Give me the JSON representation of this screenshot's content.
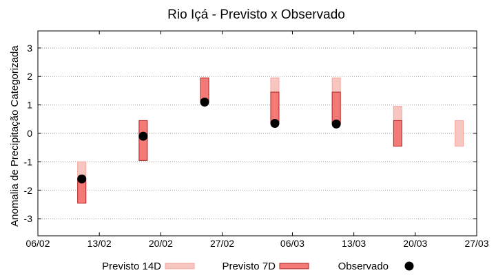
{
  "chart_data": {
    "type": "range-and-scatter",
    "title": "Rio Içá - Previsto x Observado",
    "xlabel": "",
    "ylabel": "Anomalia de Precipitação Categorizada",
    "x_ticks": [
      "06/02",
      "13/02",
      "20/02",
      "27/02",
      "06/03",
      "13/03",
      "20/03",
      "27/03"
    ],
    "ylim": [
      -3.6,
      3.6
    ],
    "y_ticks": [
      -3,
      -2,
      -1,
      0,
      1,
      2,
      3
    ],
    "y_tick_labels": [
      "-3",
      "-2",
      "-1",
      "0",
      "1",
      "2",
      "3"
    ],
    "grid": true,
    "legend_position": "bottom",
    "series": [
      {
        "name": "Previsto 14D",
        "kind": "range",
        "color": "#f7c6c0",
        "points": [
          {
            "x": "11/02",
            "low": -2.45,
            "high": -1.0
          },
          {
            "x": "18/02",
            "low": -0.95,
            "high": 0.45
          },
          {
            "x": "25/02",
            "low": 1.1,
            "high": 1.95
          },
          {
            "x": "04/03",
            "low": 0.35,
            "high": 1.95
          },
          {
            "x": "11/03",
            "low": 0.35,
            "high": 1.95
          },
          {
            "x": "18/03",
            "low": -0.45,
            "high": 0.95
          },
          {
            "x": "25/03",
            "low": -0.45,
            "high": 0.45
          }
        ]
      },
      {
        "name": "Previsto 7D",
        "kind": "range",
        "color": "#f47a78",
        "points": [
          {
            "x": "11/02",
            "low": -2.45,
            "high": -1.6
          },
          {
            "x": "18/02",
            "low": -0.95,
            "high": 0.45
          },
          {
            "x": "25/02",
            "low": 1.1,
            "high": 1.95
          },
          {
            "x": "04/03",
            "low": 0.35,
            "high": 1.45
          },
          {
            "x": "11/03",
            "low": 0.35,
            "high": 1.45
          },
          {
            "x": "18/03",
            "low": -0.45,
            "high": 0.45
          }
        ]
      },
      {
        "name": "Observado",
        "kind": "scatter",
        "color": "#000000",
        "points": [
          {
            "x": "11/02",
            "y": -1.6
          },
          {
            "x": "18/02",
            "y": -0.1
          },
          {
            "x": "25/02",
            "y": 1.1
          },
          {
            "x": "04/03",
            "y": 0.35
          },
          {
            "x": "11/03",
            "y": 0.33
          }
        ]
      }
    ]
  }
}
